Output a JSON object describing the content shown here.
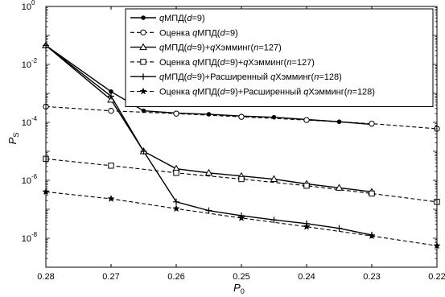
{
  "chart_data": {
    "type": "line",
    "xlabel": "P",
    "xlabel_sub": "0",
    "ylabel": "P",
    "ylabel_sub": "S",
    "x_axis_reversed": true,
    "xlim": [
      0.28,
      0.22
    ],
    "ylim": [
      1e-09,
      1
    ],
    "yscale": "log",
    "grid": false,
    "legend_position": "top-right",
    "x_ticks": [
      "0.28",
      "0.27",
      "0.26",
      "0.25",
      "0.24",
      "0.23",
      "0.22"
    ],
    "y_ticks": [
      {
        "value": 1,
        "base": "10",
        "exp": "0"
      },
      {
        "value": 0.01,
        "base": "10",
        "exp": "-2"
      },
      {
        "value": 0.0001,
        "base": "10",
        "exp": "-4"
      },
      {
        "value": 1e-06,
        "base": "10",
        "exp": "-6"
      },
      {
        "value": 1e-08,
        "base": "10",
        "exp": "-8"
      }
    ],
    "series": [
      {
        "name": "qМПД(d=9)",
        "legend": [
          {
            "t": "q",
            "i": true
          },
          {
            "t": "МПД("
          },
          {
            "t": "d",
            "i": true
          },
          {
            "t": "=9)"
          }
        ],
        "line": "solid",
        "marker": "dot",
        "x": [
          0.28,
          0.27,
          0.265,
          0.26,
          0.255,
          0.25,
          0.245,
          0.24,
          0.235,
          0.23
        ],
        "y": [
          0.045,
          0.00115,
          0.00025,
          0.00021,
          0.00019,
          0.000165,
          0.00015,
          0.000125,
          0.000105,
          8.5e-05
        ]
      },
      {
        "name": "Оценка qМПД(d=9)",
        "legend": [
          {
            "t": "Оценка "
          },
          {
            "t": "q",
            "i": true
          },
          {
            "t": "МПД("
          },
          {
            "t": "d",
            "i": true
          },
          {
            "t": "=9)"
          }
        ],
        "line": "dashed",
        "marker": "circle",
        "x": [
          0.28,
          0.27,
          0.26,
          0.25,
          0.24,
          0.23,
          0.22
        ],
        "y": [
          0.00035,
          0.00025,
          0.0002,
          0.000155,
          0.00012,
          9e-05,
          6e-05
        ]
      },
      {
        "name": "qМПД(d=9)+qХэмминг(n=127)",
        "legend": [
          {
            "t": "q",
            "i": true
          },
          {
            "t": "МПД("
          },
          {
            "t": "d",
            "i": true
          },
          {
            "t": "=9)+"
          },
          {
            "t": "q",
            "i": true
          },
          {
            "t": "Хэмминг("
          },
          {
            "t": "n",
            "i": true
          },
          {
            "t": "=127)"
          }
        ],
        "line": "solid",
        "marker": "triangle",
        "x": [
          0.28,
          0.27,
          0.265,
          0.26,
          0.255,
          0.25,
          0.245,
          0.24,
          0.235,
          0.23
        ],
        "y": [
          0.045,
          0.0006,
          1e-05,
          2.5e-06,
          1.8e-06,
          1.4e-06,
          1.1e-06,
          7.5e-07,
          5.5e-07,
          4e-07
        ]
      },
      {
        "name": "Оценка qМПД(d=9)+qХэмминг(n=127)",
        "legend": [
          {
            "t": "Оценка "
          },
          {
            "t": "q",
            "i": true
          },
          {
            "t": "МПД("
          },
          {
            "t": "d",
            "i": true
          },
          {
            "t": "=9)+"
          },
          {
            "t": "q",
            "i": true
          },
          {
            "t": "Хэмминг("
          },
          {
            "t": "n",
            "i": true
          },
          {
            "t": "=127)"
          }
        ],
        "line": "dashed",
        "marker": "square",
        "x": [
          0.28,
          0.27,
          0.26,
          0.25,
          0.24,
          0.23,
          0.22
        ],
        "y": [
          5.5e-06,
          3.2e-06,
          1.8e-06,
          1.1e-06,
          6.5e-07,
          3.5e-07,
          1.8e-07
        ]
      },
      {
        "name": "qМПД(d=9)+Расширенный qХэмминг(n=128)",
        "legend": [
          {
            "t": "q",
            "i": true
          },
          {
            "t": "МПД("
          },
          {
            "t": "d",
            "i": true
          },
          {
            "t": "=9)+Расширенный "
          },
          {
            "t": "q",
            "i": true
          },
          {
            "t": "Хэмминг("
          },
          {
            "t": "n",
            "i": true
          },
          {
            "t": "=128)"
          }
        ],
        "line": "solid",
        "marker": "plus",
        "x": [
          0.28,
          0.27,
          0.265,
          0.26,
          0.255,
          0.25,
          0.245,
          0.24,
          0.235,
          0.23
        ],
        "y": [
          0.045,
          0.0008,
          1e-05,
          1.8e-07,
          9e-08,
          6e-08,
          4.3e-08,
          3.2e-08,
          2.2e-08,
          1.3e-08
        ]
      },
      {
        "name": "Оценка qМПД(d=9)+Расширенный qХэмминг(n=128)",
        "legend": [
          {
            "t": "Оценка "
          },
          {
            "t": "q",
            "i": true
          },
          {
            "t": "МПД("
          },
          {
            "t": "d",
            "i": true
          },
          {
            "t": "=9)+Расширенный "
          },
          {
            "t": "q",
            "i": true
          },
          {
            "t": "Хэмминг("
          },
          {
            "t": "n",
            "i": true
          },
          {
            "t": "=128)"
          }
        ],
        "line": "dashed",
        "marker": "star",
        "x": [
          0.28,
          0.27,
          0.26,
          0.25,
          0.24,
          0.23,
          0.22
        ],
        "y": [
          4e-07,
          2.3e-07,
          1.05e-07,
          5e-08,
          2.5e-08,
          1.2e-08,
          5.5e-09
        ]
      }
    ]
  }
}
